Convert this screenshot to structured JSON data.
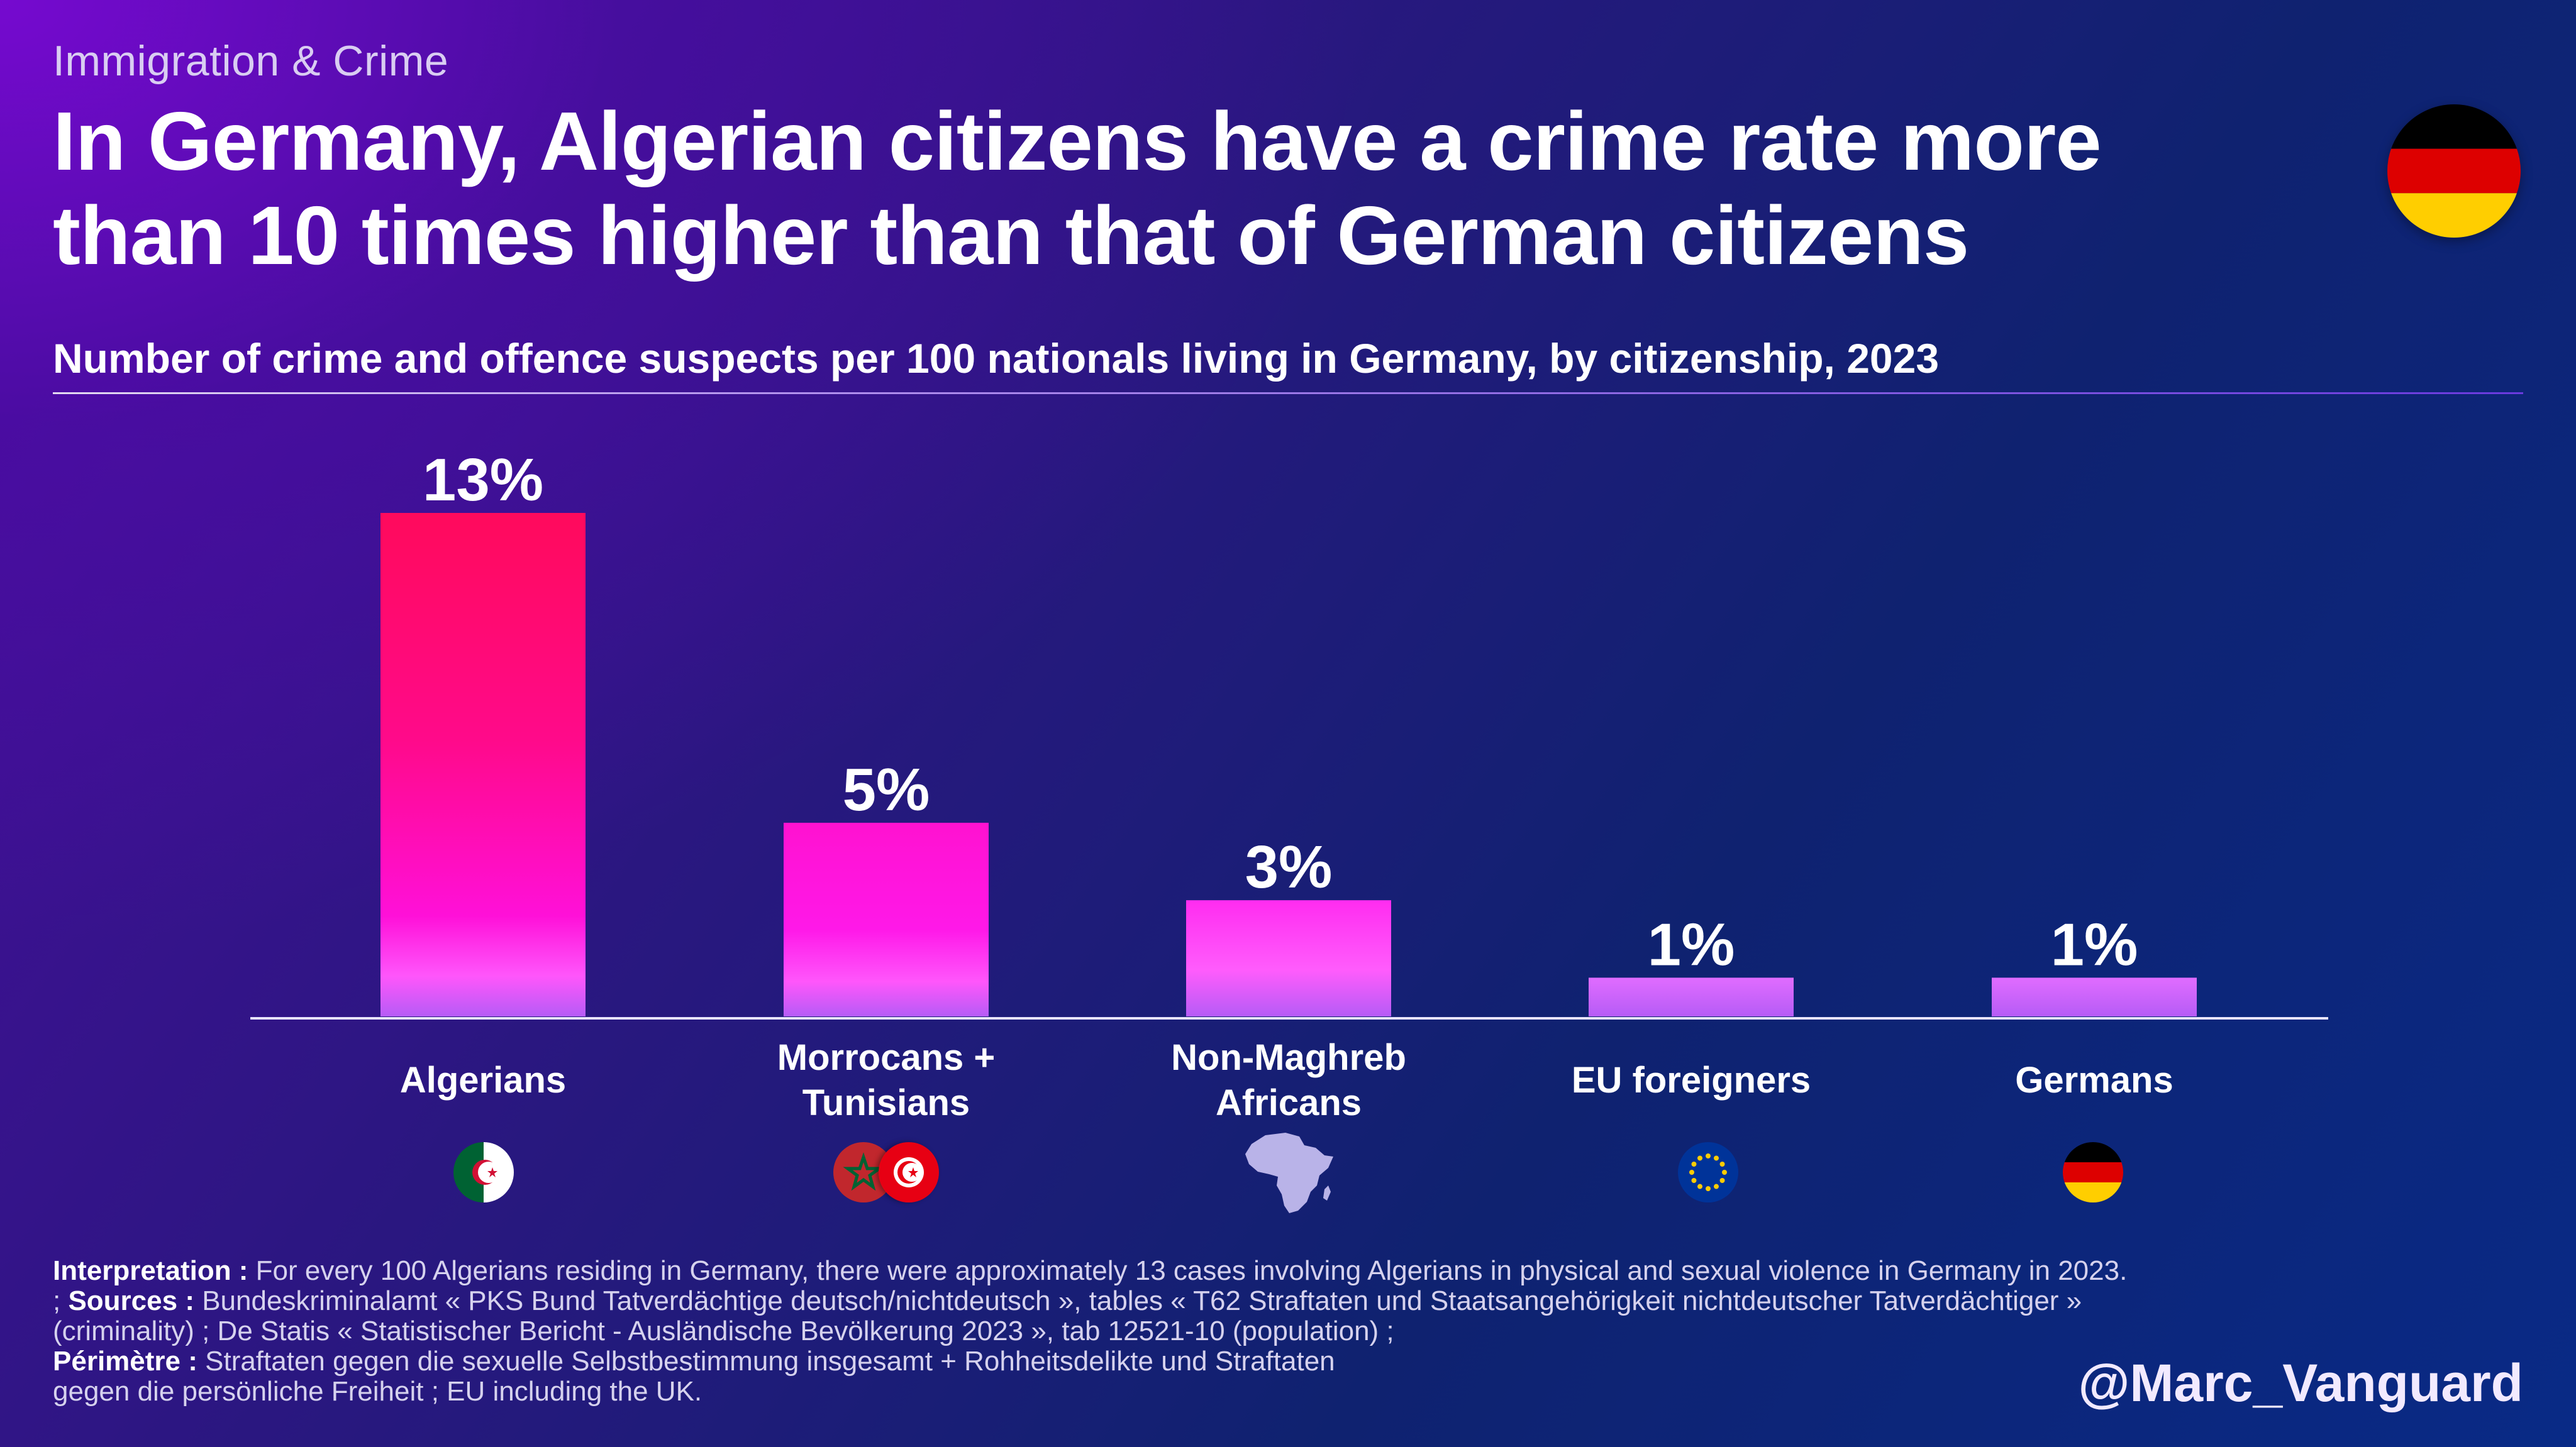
{
  "header": {
    "kicker": "Immigration & Crime",
    "headline": "In Germany, Algerian citizens have a crime rate more than 10 times higher than that of German citizens",
    "subtitle": "Number of crime and offence suspects per 100 nationals living in Germany, by citizenship, 2023",
    "flag_icon": "germany-flag-icon"
  },
  "chart_data": {
    "type": "bar",
    "subtitle": "Number of crime and offence suspects per 100 nationals living in Germany, by citizenship, 2023",
    "categories": [
      "Algerians",
      "Morrocans + Tunisians",
      "Non-Maghreb Africans",
      "EU foreigners",
      "Germans"
    ],
    "category_lines": [
      [
        "Algerians"
      ],
      [
        "Morrocans +",
        "Tunisians"
      ],
      [
        "Non-Maghreb",
        "Africans"
      ],
      [
        "EU foreigners"
      ],
      [
        "Germans"
      ]
    ],
    "values": [
      13,
      5,
      3,
      1,
      1
    ],
    "value_labels": [
      "13%",
      "5%",
      "3%",
      "1%",
      "1%"
    ],
    "ylim": [
      0,
      13
    ],
    "grid": false,
    "legend": "none",
    "colors": {
      "bar_top_strong": "#ff0a5c",
      "bar_mid": "#ff12d0",
      "bar_pink": "#ff4dfc",
      "bar_base": "#b65cf6"
    },
    "category_icons": [
      "algeria-flag-icon",
      "morocco-tunisia-flags-icon",
      "africa-map-icon",
      "eu-flag-icon",
      "germany-flag-icon"
    ]
  },
  "footer": {
    "interpretation_label": "Interpretation :",
    "interpretation_text": " For every 100 Algerians residing in Germany, there were approximately 13 cases involving Algerians in physical and sexual violence in Germany in 2023. ; ",
    "sources_label": "Sources :",
    "sources_text": " Bundeskriminalamt « PKS Bund Tatverdächtige deutsch/nichtdeutsch », tables « T62 Straftaten und Staatsangehörigkeit nichtdeutscher Tatverdächtiger » (criminality) ; De Statis « Statistischer Bericht - Ausländische Bevölkerung 2023 », tab 12521-10 (population) ;",
    "perimetre_label": "Périmètre :",
    "perimetre_text_1": " Straftaten gegen die sexuelle Selbstbestimmung insgesamt + Rohheitsdelikte und Straftaten",
    "perimetre_text_2": "gegen die persönliche Freiheit ; EU including the UK.",
    "handle": "@Marc_Vanguard"
  }
}
